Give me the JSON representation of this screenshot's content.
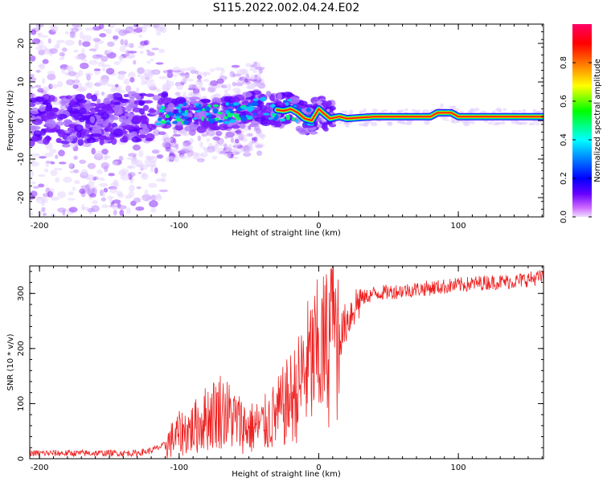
{
  "figure": {
    "title": "S115.2022.002.04.24.E02"
  },
  "colors": {
    "snr_line": "#ee2222",
    "colorbar": [
      "#ff0066",
      "#ff0000",
      "#ff8800",
      "#ffff00",
      "#00ff00",
      "#00ffff",
      "#0066ff",
      "#0000ff",
      "#6600ff",
      "#cc66ff",
      "#eeddff"
    ]
  },
  "chart_data": [
    {
      "type": "heatmap",
      "xlabel": "Height of straight line (km)",
      "ylabel": "Frequency (Hz)",
      "xlim": [
        -207,
        161
      ],
      "ylim": [
        -25,
        25
      ],
      "xticks": [
        -200,
        -100,
        0,
        100
      ],
      "xtick_labels": [
        "-200",
        "-100",
        "0",
        "100"
      ],
      "yticks": [
        -20,
        -10,
        0,
        10,
        20
      ],
      "ytick_labels": [
        "-20",
        "-10",
        "0",
        "10",
        "20"
      ],
      "grid": false,
      "colorbar": {
        "label": "Normalized spectral amplitude",
        "range": [
          0,
          1
        ],
        "ticks": [
          0,
          0.2,
          0.4,
          0.6,
          0.8
        ],
        "tick_labels": [
          "0.0",
          "0.2",
          "0.4",
          "0.6",
          "0.8"
        ]
      },
      "ridge": {
        "x": [
          -207,
          -150,
          -120,
          -100,
          -80,
          -60,
          -45,
          -35,
          -25,
          -20,
          -15,
          -10,
          -5,
          0,
          3,
          8,
          15,
          20,
          40,
          60,
          80,
          85,
          90,
          95,
          100,
          120,
          140,
          161
        ],
        "frequency": [
          0,
          0.5,
          1,
          2,
          1.5,
          2,
          3.5,
          3,
          2.5,
          3,
          2,
          0.5,
          0,
          3,
          2,
          0.5,
          1,
          0.5,
          1,
          1,
          1,
          2,
          2,
          2,
          1,
          1,
          1,
          1
        ]
      }
    },
    {
      "type": "line",
      "xlabel": "Height of straight line (km)",
      "ylabel": "SNR (10 * v/v)",
      "xlim": [
        -207,
        161
      ],
      "ylim": [
        0,
        350
      ],
      "xticks": [
        -200,
        -100,
        0,
        100
      ],
      "xtick_labels": [
        "-200",
        "-100",
        "0",
        "100"
      ],
      "yticks": [
        0,
        100,
        200,
        300
      ],
      "ytick_labels": [
        "0",
        "100",
        "200",
        "300"
      ],
      "grid": false,
      "series": [
        {
          "x": [
            -207,
            -180,
            -150,
            -130,
            -120,
            -110,
            -100,
            -90,
            -80,
            -70,
            -60,
            -50,
            -40,
            -30,
            -20,
            -15,
            -10,
            -5,
            0,
            5,
            10,
            15,
            20,
            25,
            30,
            40,
            60,
            80,
            100,
            120,
            140,
            161
          ],
          "y": [
            10,
            10,
            10,
            10,
            15,
            25,
            45,
            55,
            75,
            90,
            70,
            55,
            60,
            80,
            110,
            125,
            160,
            175,
            190,
            200,
            230,
            220,
            250,
            275,
            290,
            300,
            305,
            310,
            315,
            320,
            322,
            330
          ]
        }
      ]
    }
  ]
}
